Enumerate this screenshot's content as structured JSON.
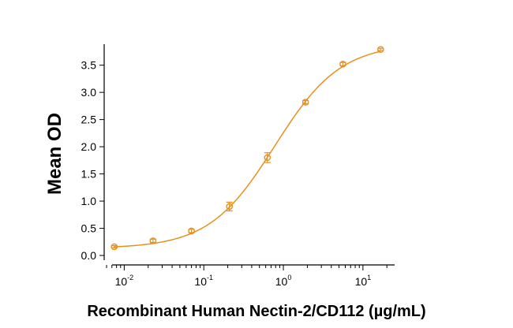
{
  "chart_data": {
    "type": "scatter",
    "title": "",
    "xlabel": "Recombinant Human Nectin-2/CD112 (µg/mL)",
    "ylabel": "Mean OD",
    "x_scale": "log",
    "xlim": [
      0.0056,
      25
    ],
    "ylim": [
      0,
      3.8
    ],
    "grid": false,
    "legend": "none",
    "x_ticks": [
      {
        "value": 0.01,
        "base": "10",
        "exp": "-2"
      },
      {
        "value": 0.1,
        "base": "10",
        "exp": "-1"
      },
      {
        "value": 1,
        "base": "10",
        "exp": "0"
      },
      {
        "value": 10,
        "base": "10",
        "exp": "1"
      }
    ],
    "y_ticks": [
      "0.0",
      "0.5",
      "1.0",
      "1.5",
      "2.0",
      "2.5",
      "3.0",
      "3.5"
    ],
    "series": [
      {
        "color": "#e8901e",
        "points": [
          {
            "x": 0.0075,
            "y": 0.16,
            "err": 0.02
          },
          {
            "x": 0.023,
            "y": 0.27,
            "err": 0.03
          },
          {
            "x": 0.07,
            "y": 0.45,
            "err": 0.03
          },
          {
            "x": 0.21,
            "y": 0.9,
            "err": 0.08
          },
          {
            "x": 0.63,
            "y": 1.8,
            "err": 0.09
          },
          {
            "x": 1.9,
            "y": 2.82,
            "err": 0.03
          },
          {
            "x": 5.6,
            "y": 3.52,
            "err": 0.03
          },
          {
            "x": 16.7,
            "y": 3.79,
            "err": 0.02
          }
        ],
        "fit": {
          "bottom": 0.13,
          "top": 3.9,
          "ec50": 0.78,
          "hill": 1.05
        }
      }
    ]
  }
}
